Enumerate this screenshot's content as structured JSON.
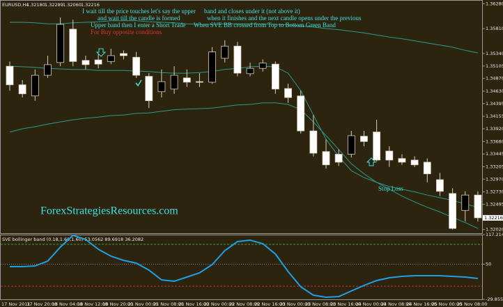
{
  "chart_data": [
    {
      "type": "candlestick",
      "title": "EURUSD,H4",
      "header_values": [
        "1.32180",
        "1.32289",
        "1.32060",
        "1.32216"
      ],
      "categories": [
        "17 Nov 2011",
        null,
        "17 Nov 20:00",
        null,
        "18 Nov 04:00",
        null,
        "18 Nov 12:00",
        null,
        "18 Nov 20:00",
        null,
        "21 Nov 00:00",
        null,
        "21 Nov 08:00",
        null,
        "21 Nov 16:00",
        null,
        "22 Nov 00:00",
        null,
        "22 Nov 08:00",
        null,
        "22 Nov 16:00",
        null,
        "23 Nov 00:00",
        null,
        "23 Nov 08:00",
        null,
        "23 Nov 16:00",
        null,
        "24 Nov 00:00",
        null,
        "24 Nov 08:00",
        null,
        "24 Nov 16:00",
        null,
        "25 Nov 00:00",
        null,
        "25 Nov 08:00",
        null
      ],
      "open": [
        1.351,
        1.3475,
        1.3454,
        1.3493,
        1.3517,
        1.358,
        1.3521,
        1.3522,
        1.3519,
        1.3534,
        1.3527,
        1.3491,
        1.3462,
        1.3467,
        1.3488,
        1.3481,
        1.348,
        1.3525,
        1.3548,
        1.3496,
        1.3506,
        1.3514,
        1.3468,
        1.3454,
        1.3388,
        1.3349,
        1.3344,
        1.3344,
        1.3378,
        1.3386,
        1.335,
        1.3336,
        1.3333,
        1.3329,
        1.3296,
        1.327,
        1.3238,
        1.3267
      ],
      "high": [
        1.3519,
        1.3484,
        1.3504,
        1.353,
        1.3602,
        1.3598,
        1.353,
        1.3533,
        1.3543,
        1.354,
        1.3537,
        1.3497,
        1.3504,
        1.351,
        1.3504,
        1.3497,
        1.3546,
        1.3559,
        1.3556,
        1.3517,
        1.3523,
        1.3519,
        1.3477,
        1.3464,
        1.3418,
        1.3372,
        1.3353,
        1.3388,
        1.3388,
        1.3409,
        1.3359,
        1.3344,
        1.334,
        1.3336,
        1.3309,
        1.328,
        1.3274,
        1.3274
      ],
      "low": [
        1.3464,
        1.3451,
        1.3445,
        1.3488,
        1.351,
        1.351,
        1.3504,
        1.3506,
        1.3514,
        1.3523,
        1.3488,
        1.3431,
        1.3451,
        1.3458,
        1.3471,
        1.3471,
        1.3477,
        1.3517,
        1.3491,
        1.3491,
        1.35,
        1.3458,
        1.3441,
        1.3383,
        1.334,
        1.3317,
        1.3322,
        1.3338,
        1.3359,
        1.333,
        1.332,
        1.3324,
        1.332,
        1.3291,
        1.3265,
        1.3202,
        1.3217,
        1.3217
      ],
      "close": [
        1.3475,
        1.3458,
        1.3493,
        1.3513,
        1.3589,
        1.3519,
        1.3513,
        1.3514,
        1.353,
        1.353,
        1.3493,
        1.3445,
        1.3481,
        1.3493,
        1.348,
        1.348,
        1.3537,
        1.3548,
        1.3497,
        1.3506,
        1.3516,
        1.3467,
        1.3451,
        1.3388,
        1.3346,
        1.3324,
        1.3329,
        1.3379,
        1.3368,
        1.3333,
        1.3333,
        1.3329,
        1.3324,
        1.3307,
        1.3274,
        1.3204,
        1.3267,
        1.3224
      ],
      "up_color": "#000000",
      "down_color": "#ffffff",
      "wick_color": "#d8cfb8",
      "overlays": [
        {
          "color": "#2a9a88",
          "values": [
            1.3593,
            1.3593,
            1.3592,
            1.359,
            1.359,
            1.3592,
            1.3593,
            1.3594,
            1.3596,
            1.3596,
            1.3596,
            1.3594,
            1.3593,
            1.3592,
            1.359,
            1.3589,
            1.3589,
            1.359,
            1.359,
            1.359,
            1.359,
            1.3589,
            1.3588,
            1.3586,
            1.3584,
            1.3581,
            1.3579,
            1.3576,
            1.3573,
            1.3569,
            1.3565,
            1.3562,
            1.3558,
            1.3554,
            1.355,
            1.3546,
            1.354,
            1.3535
          ]
        },
        {
          "color": "#2a9a88",
          "values": [
            1.351,
            1.3509,
            1.3508,
            1.3506,
            1.3505,
            1.3504,
            1.3504,
            1.3502,
            1.3502,
            1.3502,
            1.3501,
            1.35,
            1.3498,
            1.3497,
            1.3497,
            1.3498,
            1.35,
            1.3504,
            1.3506,
            1.3509,
            1.351,
            1.3509,
            1.3497,
            1.3464,
            1.3418,
            1.3372,
            1.334,
            1.3313,
            1.33,
            1.3291,
            1.3283,
            1.3278,
            1.3273,
            1.3267,
            1.3262,
            1.3257,
            1.325,
            1.3244
          ]
        },
        {
          "color": "#2a9a88",
          "values": [
            1.3386,
            1.3392,
            1.3396,
            1.3401,
            1.3405,
            1.3409,
            1.3412,
            1.3414,
            1.3417,
            1.3418,
            1.3421,
            1.3422,
            1.3425,
            1.3428,
            1.3429,
            1.343,
            1.3431,
            1.3434,
            1.3437,
            1.3438,
            1.3441,
            1.3441,
            1.3438,
            1.3428,
            1.3405,
            1.3379,
            1.3353,
            1.3326,
            1.3307,
            1.3291,
            1.3278,
            1.3265,
            1.3254,
            1.3244,
            1.3235,
            1.3225,
            1.3215,
            1.3204
          ]
        }
      ],
      "ylim": [
        1.3195,
        1.3635
      ],
      "yticks": [
        {
          "value": 1.3628,
          "label": "1.36280"
        },
        {
          "value": 1.3581,
          "label": "1.35810"
        },
        {
          "value": 1.3534,
          "label": "1.35340"
        },
        {
          "value": 1.35105,
          "label": "1.35105"
        },
        {
          "value": 1.3487,
          "label": "1.34870"
        },
        {
          "value": 1.3463,
          "label": "1.34630"
        },
        {
          "value": 1.34395,
          "label": "1.34395"
        },
        {
          "value": 1.34155,
          "label": "1.34155"
        },
        {
          "value": 1.3392,
          "label": "1.33920"
        },
        {
          "value": 1.3368,
          "label": "1.33680"
        },
        {
          "value": 1.33445,
          "label": "1.33445"
        },
        {
          "value": 1.33205,
          "label": "1.33205"
        },
        {
          "value": 1.3297,
          "label": "1.32970"
        },
        {
          "value": 1.3273,
          "label": "1.32730"
        },
        {
          "value": 1.32495,
          "label": "1.32495"
        },
        {
          "value": 1.3202,
          "label": "1.32020"
        }
      ],
      "grid": false,
      "annotations": [
        {
          "text": "I wait till the price touches let's say the upper",
          "color": "#40e0e0"
        },
        {
          "text": "band and closes under it (not above it)",
          "color": "#40e0e0"
        },
        {
          "text": "and wait till the candle is formed",
          "color": "#40e0e0"
        },
        {
          "text": "when it finishes and the next candle opens under the previous",
          "color": "#40e0e0"
        },
        {
          "text": "Upper band then I enter a Short Trade",
          "color": "#40e0e0"
        },
        {
          "text": "When SVE BB crossed from Top to Bottom Green Band",
          "color": "#40e0e0"
        },
        {
          "text": "For Buy opposite conditions",
          "color": "#e03030"
        },
        {
          "text": "Stop Loss",
          "color": "#40e0e0"
        },
        {
          "text": "ForexStrategiesResources.com",
          "color": "#40e0e0"
        }
      ]
    },
    {
      "type": "line",
      "title": "SVE bollinger band (0.18,1.60,1.60) 53.0562 89.6918 36.2082",
      "series": [
        {
          "color": "#1ea0e6",
          "values": [
            44.5,
            44.5,
            46.1,
            57.1,
            88.8,
            115.6,
            106.1,
            84.0,
            68.2,
            58.7,
            52.4,
            36.6,
            14.4,
            11.3,
            20.8,
            30.2,
            49.2,
            80.8,
            101.4,
            104.6,
            96.7,
            72.9,
            33.4,
            -1.4,
            -20.4,
            -25.1,
            -23.5,
            -10.9,
            1.8,
            12.8,
            19.2,
            22.3,
            23.9,
            23.9,
            23.9,
            22.3,
            20.8,
            17.6
          ]
        }
      ],
      "levels": [
        {
          "value": 95,
          "color": "#3c9a3c"
        },
        {
          "value": 50,
          "color": "#8a8a8a"
        },
        {
          "value": 0,
          "color": "#c03030"
        }
      ],
      "ylim": [
        -29.8552,
        117.2141
      ],
      "yticks": [
        117.2141,
        50,
        -29.8552
      ],
      "grid": false
    }
  ]
}
